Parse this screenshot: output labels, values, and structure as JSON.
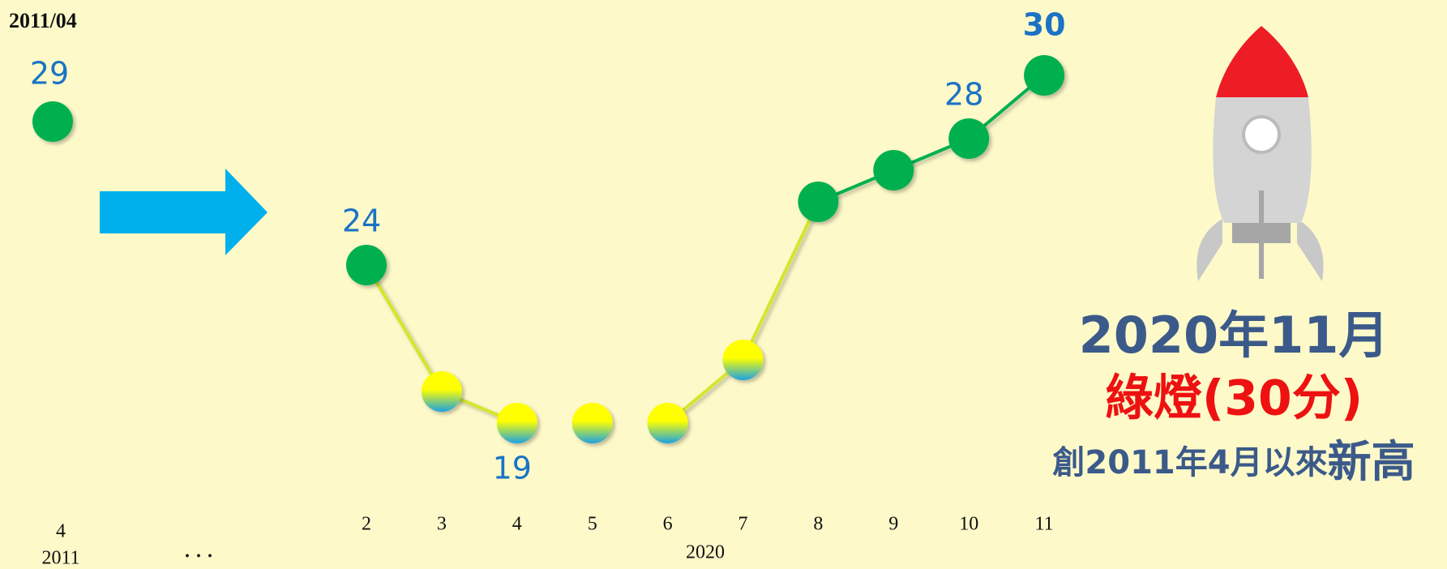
{
  "chart_data": {
    "type": "line",
    "categories": [
      "2",
      "3",
      "4",
      "5",
      "6",
      "7",
      "8",
      "9",
      "10",
      "11"
    ],
    "x_group": "2020",
    "series": [
      {
        "values": [
          24,
          20,
          19,
          19,
          19,
          21,
          26,
          27,
          28,
          30
        ],
        "value_labels": [
          "24",
          null,
          "19",
          null,
          null,
          null,
          null,
          null,
          "28",
          "30"
        ],
        "point_colors": [
          "#00b050",
          [
            "#ffff00",
            "#1ba3e3"
          ],
          [
            "#ffff00",
            "#1ba3e3"
          ],
          [
            "#ffff00",
            "#1ba3e3"
          ],
          [
            "#ffff00",
            "#1ba3e3"
          ],
          [
            "#ffff00",
            "#1ba3e3"
          ],
          "#00b050",
          "#00b050",
          "#00b050",
          "#00b050"
        ],
        "line_color": "#d4e62c"
      }
    ],
    "reference": {
      "label": "2011/04",
      "month": "4",
      "year": "2011",
      "value": 29,
      "value_label": "29",
      "color": "#00b050"
    },
    "gap_marker": "· · ·",
    "headline": {
      "date": "2020年11月",
      "signal": "綠燈(30分)",
      "note": "創2011年4月以來",
      "note_emphasis": "新高"
    }
  }
}
